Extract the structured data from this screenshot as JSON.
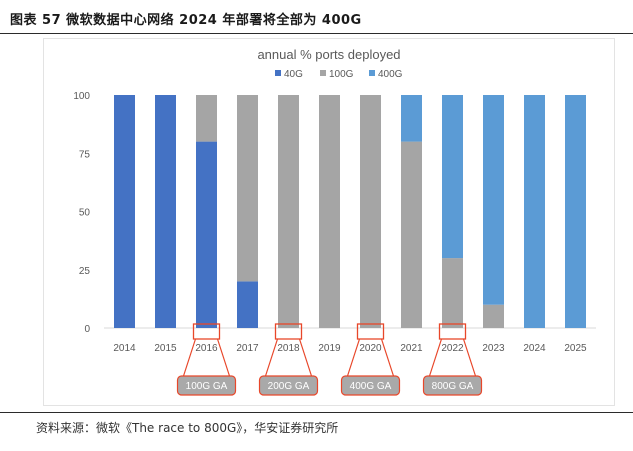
{
  "figure": {
    "title": "图表 57 微软数据中心网络 2024 年部署将全部为 400G",
    "source": "资料来源：微软《The race to 800G》，华安证券研究所"
  },
  "chart_data": {
    "type": "bar",
    "stacked": true,
    "title": "annual % ports deployed",
    "xlabel": "",
    "ylabel": "",
    "ylim": [
      0,
      100
    ],
    "yticks": [
      0,
      25,
      50,
      75,
      100
    ],
    "grid": false,
    "legend_position": "top",
    "categories": [
      "2014",
      "2015",
      "2016",
      "2017",
      "2018",
      "2019",
      "2020",
      "2021",
      "2022",
      "2023",
      "2024",
      "2025"
    ],
    "series": [
      {
        "name": "40G",
        "color": "#4472c4",
        "values": [
          100,
          100,
          80,
          20,
          0,
          0,
          0,
          0,
          0,
          0,
          0,
          0
        ]
      },
      {
        "name": "100G",
        "color": "#a5a5a5",
        "values": [
          0,
          0,
          20,
          80,
          100,
          100,
          100,
          80,
          30,
          10,
          0,
          0
        ]
      },
      {
        "name": "400G",
        "color": "#5b9bd5",
        "values": [
          0,
          0,
          0,
          0,
          0,
          0,
          0,
          20,
          70,
          90,
          100,
          100
        ]
      }
    ],
    "annotations": [
      {
        "label": "100G GA",
        "category": "2016"
      },
      {
        "label": "200G GA",
        "category": "2018"
      },
      {
        "label": "400G GA",
        "category": "2020"
      },
      {
        "label": "800G GA",
        "category": "2022"
      }
    ]
  }
}
